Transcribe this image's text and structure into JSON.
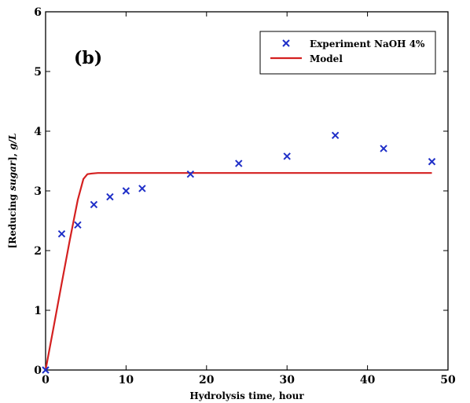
{
  "chart_data": {
    "type": "scatter",
    "panel_label": "(b)",
    "xlabel": "Hydrolysis time, hour",
    "ylabel_parts": [
      "[Reducing ",
      "sugar",
      "], ",
      "g/L"
    ],
    "xlim": [
      0,
      50
    ],
    "ylim": [
      0,
      6
    ],
    "x_ticks": [
      0,
      10,
      20,
      30,
      40,
      50
    ],
    "y_ticks": [
      0,
      1,
      2,
      3,
      4,
      5,
      6
    ],
    "x_tick_labels": [
      "0",
      "10",
      "20",
      "30",
      "40",
      "50"
    ],
    "y_tick_labels": [
      "0",
      "1",
      "2",
      "3",
      "4",
      "5",
      "6"
    ],
    "legend_position": "top-right",
    "series": [
      {
        "name": "Experiment NaOH 4%",
        "kind": "scatter",
        "marker": "x",
        "color": "#1f2fc8",
        "x": [
          0,
          2,
          4,
          6,
          8,
          10,
          12,
          18,
          24,
          30,
          36,
          42,
          48
        ],
        "y": [
          0.0,
          2.28,
          2.43,
          2.77,
          2.9,
          3.0,
          3.04,
          3.28,
          3.46,
          3.58,
          3.93,
          3.71,
          3.49
        ]
      },
      {
        "name": "Model",
        "kind": "line",
        "color": "#d42020",
        "x": [
          0,
          1,
          2,
          3,
          4,
          4.7,
          5.2,
          5.7,
          6.5,
          10,
          20,
          30,
          40,
          48
        ],
        "y": [
          0.0,
          0.72,
          1.45,
          2.17,
          2.85,
          3.2,
          3.28,
          3.29,
          3.3,
          3.3,
          3.3,
          3.3,
          3.3,
          3.3
        ]
      }
    ]
  }
}
